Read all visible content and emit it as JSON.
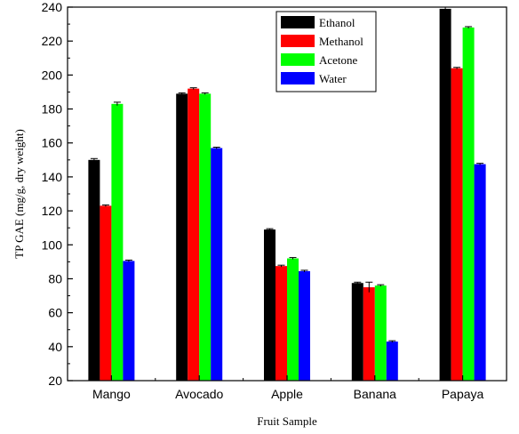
{
  "chart_data": {
    "type": "bar",
    "title": "",
    "xlabel": "Fruit Sample",
    "ylabel": "TP GAE (mg/g, dry weight)",
    "ylim": [
      20,
      240
    ],
    "yticks": [
      20,
      40,
      60,
      80,
      100,
      120,
      140,
      160,
      180,
      200,
      220,
      240
    ],
    "grid": false,
    "legend_position": "top-right",
    "categories": [
      "Mango",
      "Avocado",
      "Apple",
      "Banana",
      "Papaya"
    ],
    "series": [
      {
        "name": "Ethanol",
        "color": "#000000",
        "values": [
          150,
          189,
          109,
          77.5,
          239
        ],
        "errors": [
          0.8,
          0.5,
          0.5,
          0.5,
          1.0
        ]
      },
      {
        "name": "Methanol",
        "color": "#ff0000",
        "values": [
          123,
          192,
          87.5,
          75,
          204
        ],
        "errors": [
          0.5,
          0.5,
          0.5,
          3.0,
          0.5
        ]
      },
      {
        "name": "Acetone",
        "color": "#00ff00",
        "values": [
          183,
          189,
          92,
          76,
          228
        ],
        "errors": [
          1.0,
          0.5,
          0.5,
          0.5,
          0.5
        ]
      },
      {
        "name": "Water",
        "color": "#0000ff",
        "values": [
          90.5,
          157,
          84.5,
          43,
          147.5
        ],
        "errors": [
          0.5,
          0.5,
          0.5,
          0.5,
          0.5
        ]
      }
    ]
  }
}
